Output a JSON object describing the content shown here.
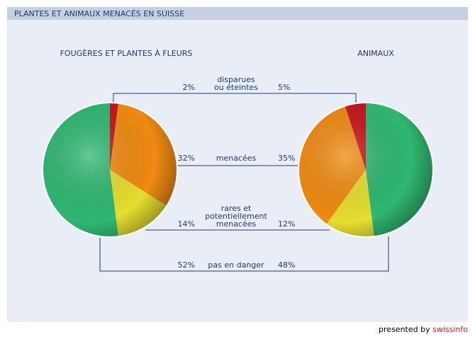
{
  "title": "PLANTES ET ANIMAUX MENACÉS EN SUISSE",
  "categories": [
    [
      "disparues",
      "ou éteintes"
    ],
    [
      "menacées"
    ],
    [
      "rares et",
      "potentiellement",
      "menacées"
    ],
    [
      "pas en danger"
    ]
  ],
  "colors": [
    "#c8141c",
    "#f08a12",
    "#e6de2e",
    "#2fb870"
  ],
  "chart_data": [
    {
      "type": "pie",
      "title": "FOUGÈRES ET PLANTES À FLEURS",
      "values": [
        2,
        32,
        14,
        52
      ],
      "value_labels": [
        "2%",
        "32%",
        "14%",
        "52%"
      ],
      "clockwise": true
    },
    {
      "type": "pie",
      "title": "ANIMAUX",
      "values": [
        5,
        35,
        12,
        48
      ],
      "value_labels": [
        "5%",
        "35%",
        "12%",
        "48%"
      ],
      "clockwise": false
    }
  ],
  "footer": {
    "prefix": "presented by",
    "brand": "swissinfo"
  }
}
